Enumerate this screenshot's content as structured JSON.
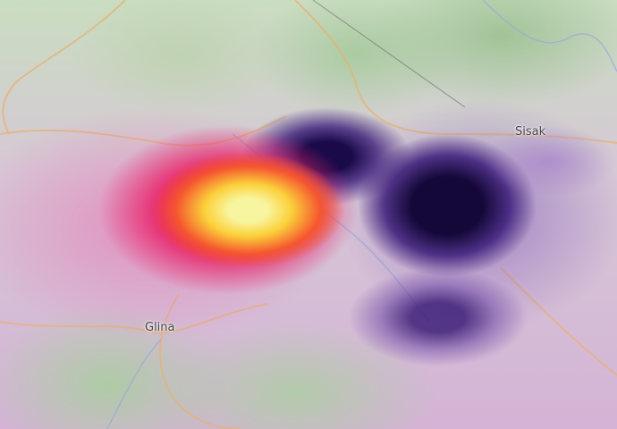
{
  "map": {
    "place_labels": [
      "Glina",
      "Sisak"
    ],
    "overlay": {
      "uplift_colors": [
        "#f8f5a0",
        "#fbd13a",
        "#f5562f",
        "#e8246a",
        "#e87ab5"
      ],
      "subsidence_colors": [
        "#1a0a4a",
        "#3b1d7a",
        "#6a43a3",
        "#b48ad0"
      ]
    }
  }
}
